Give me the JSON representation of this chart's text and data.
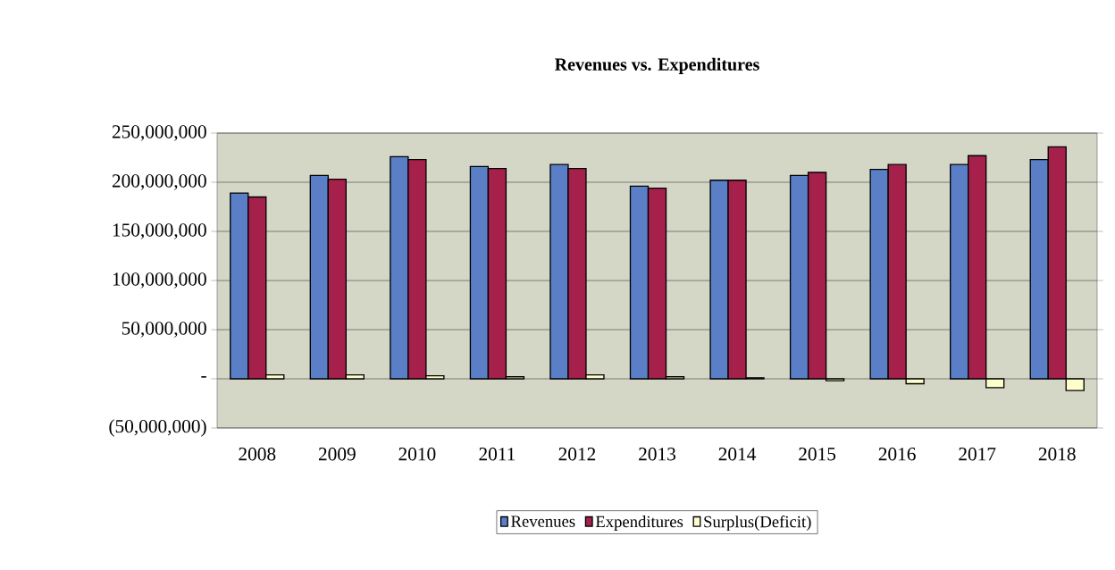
{
  "chart_data": {
    "type": "bar",
    "title": "Revenues vs. Expenditures",
    "categories": [
      "2008",
      "2009",
      "2010",
      "2011",
      "2012",
      "2013",
      "2014",
      "2015",
      "2016",
      "2017",
      "2018"
    ],
    "series": [
      {
        "name": "Revenues",
        "color": "#5b7fc6",
        "values": [
          189000000,
          207000000,
          226000000,
          216000000,
          218000000,
          196000000,
          202000000,
          207000000,
          213000000,
          218000000,
          223000000
        ]
      },
      {
        "name": "Expenditures",
        "color": "#a6204c",
        "values": [
          185000000,
          203000000,
          223000000,
          214000000,
          214000000,
          194000000,
          202000000,
          210000000,
          218000000,
          227000000,
          236000000
        ]
      },
      {
        "name": "Surplus(Deficit)",
        "color": "#ffffcc",
        "values": [
          4000000,
          4000000,
          3000000,
          2000000,
          4000000,
          2000000,
          1000000,
          -2000000,
          -5000000,
          -9000000,
          -12000000
        ]
      }
    ],
    "ylim": [
      -50000000,
      250000000
    ],
    "yticks": [
      {
        "value": -50000000,
        "label": "(50,000,000)"
      },
      {
        "value": 0,
        "label": "-"
      },
      {
        "value": 50000000,
        "label": "50,000,000"
      },
      {
        "value": 100000000,
        "label": "100,000,000"
      },
      {
        "value": 150000000,
        "label": "150,000,000"
      },
      {
        "value": 200000000,
        "label": "200,000,000"
      },
      {
        "value": 250000000,
        "label": "250,000,000"
      }
    ],
    "grid": "y",
    "legend": "bottom"
  }
}
